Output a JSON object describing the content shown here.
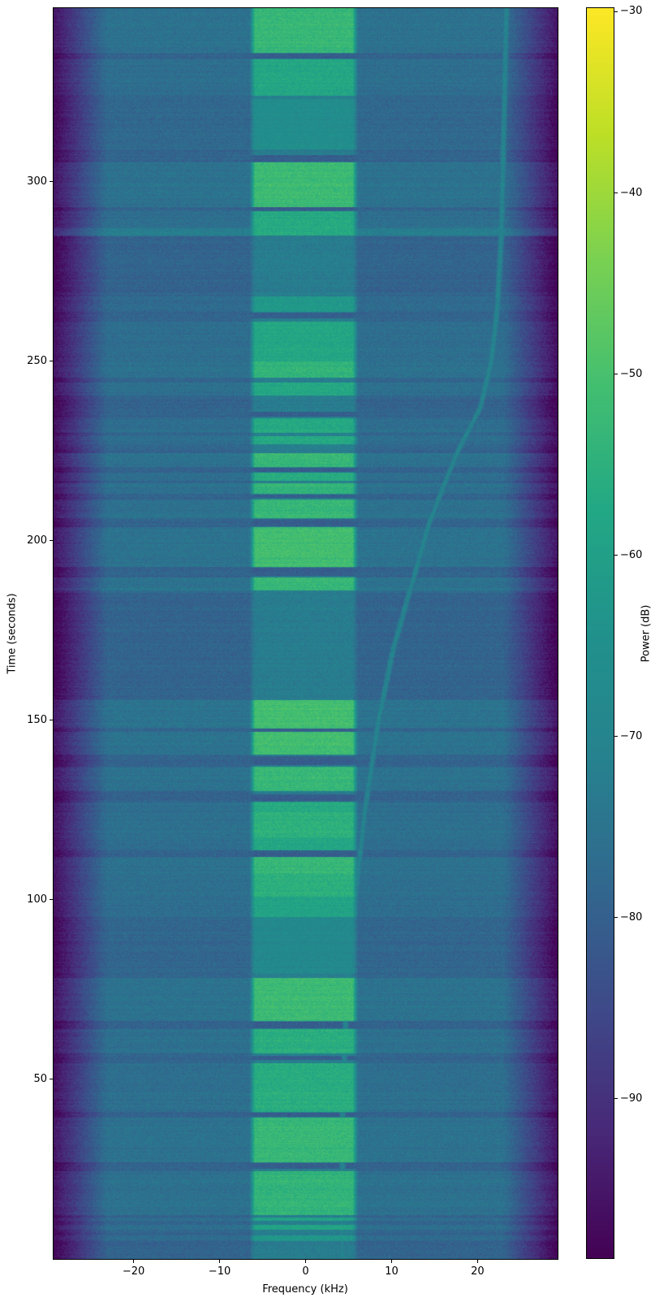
{
  "chart_data": {
    "type": "heatmap",
    "subtype": "spectrogram",
    "title": "",
    "xlabel": "Frequency (kHz)",
    "ylabel": "Time (seconds)",
    "colorbar_label": "Power (dB)",
    "colormap": "viridis",
    "grid": false,
    "x_range_khz": [
      -29.3,
      29.3
    ],
    "y_range_s": [
      0,
      348.4
    ],
    "xticks": [
      -20,
      -10,
      0,
      10,
      20
    ],
    "yticks": [
      50,
      100,
      150,
      200,
      250,
      300
    ],
    "colorbar_ticks": [
      -30,
      -40,
      -50,
      -60,
      -70,
      -80,
      -90
    ],
    "color_range_db": [
      -98.8,
      -29.8
    ],
    "noise_floor_db": -79,
    "edge_rolloff_start_khz": 23,
    "edge_db": -99,
    "signal_band_khz": [
      -6.5,
      6.1
    ],
    "band_edge_soft_khz": 0.6,
    "quiet_band_db": -72.5,
    "gap_db": -80.5,
    "bursts_t0_t1_db": [
      [
        5.0,
        6.6,
        -63
      ],
      [
        8.2,
        9.4,
        -59
      ],
      [
        10.6,
        11.6,
        -59
      ],
      [
        12.3,
        24.5,
        -54
      ],
      [
        27.0,
        39.3,
        -53
      ],
      [
        41.0,
        54.5,
        -56
      ],
      [
        57.3,
        64.0,
        -56
      ],
      [
        66.3,
        78.2,
        -52
      ],
      [
        79.3,
        95.2,
        -68
      ],
      [
        95.2,
        100.8,
        -59
      ],
      [
        100.8,
        107.4,
        -55
      ],
      [
        107.4,
        111.9,
        -53
      ],
      [
        113.7,
        117.4,
        -58
      ],
      [
        117.4,
        124.6,
        -55
      ],
      [
        124.6,
        127.3,
        -57
      ],
      [
        130.3,
        137.2,
        -53
      ],
      [
        140.4,
        155.6,
        -51
      ],
      [
        186.1,
        189.8,
        -53
      ],
      [
        192.8,
        203.8,
        -51
      ],
      [
        206.4,
        211.6,
        -53
      ],
      [
        213.0,
        216.1,
        -54
      ],
      [
        216.7,
        219.1,
        -56
      ],
      [
        220.6,
        224.5,
        -53
      ],
      [
        226.9,
        229.1,
        -57
      ],
      [
        230.0,
        234.2,
        -57
      ],
      [
        240.5,
        244.1,
        -58
      ],
      [
        245.5,
        250.0,
        -54
      ],
      [
        250.0,
        261.0,
        -58
      ],
      [
        263.8,
        268.2,
        -62
      ],
      [
        285.0,
        291.8,
        -57
      ],
      [
        293.0,
        305.5,
        -52
      ],
      [
        309.0,
        323.0,
        -66
      ],
      [
        324.0,
        334.1,
        -58
      ],
      [
        336.0,
        348.4,
        -53
      ]
    ],
    "gaps_t0_t1": [
      [
        25.2,
        26.8
      ],
      [
        39.5,
        40.8
      ],
      [
        55.5,
        56.6
      ],
      [
        64.2,
        66.1
      ],
      [
        111.9,
        113.7
      ],
      [
        127.4,
        129.4
      ],
      [
        137.6,
        140.0
      ],
      [
        146.9,
        147.8
      ],
      [
        190.3,
        192.5
      ],
      [
        204.1,
        206.1
      ],
      [
        212.0,
        212.8
      ],
      [
        219.3,
        220.3
      ],
      [
        234.6,
        235.9
      ],
      [
        262.0,
        263.5
      ],
      [
        291.9,
        292.9
      ],
      [
        305.7,
        307.4
      ],
      [
        334.3,
        335.8
      ]
    ],
    "wideband_rows_t0_t1_boost_db": [
      [
        284.8,
        287.2,
        4.0
      ],
      [
        185.4,
        186.8,
        2.0
      ]
    ],
    "drift_tone": {
      "db": -70,
      "points_t_f": [
        [
          0,
          4.25
        ],
        [
          40,
          4.3
        ],
        [
          60,
          4.55
        ],
        [
          80,
          5.0
        ],
        [
          100,
          5.75
        ],
        [
          125,
          6.9
        ],
        [
          150,
          8.5
        ],
        [
          170,
          10.2
        ],
        [
          190,
          12.6
        ],
        [
          205,
          14.4
        ],
        [
          215,
          16.0
        ],
        [
          225,
          17.7
        ],
        [
          237,
          20.3
        ],
        [
          250,
          21.6
        ],
        [
          265,
          22.3
        ],
        [
          285,
          22.75
        ],
        [
          310,
          23.0
        ],
        [
          348.4,
          23.35
        ]
      ]
    }
  }
}
